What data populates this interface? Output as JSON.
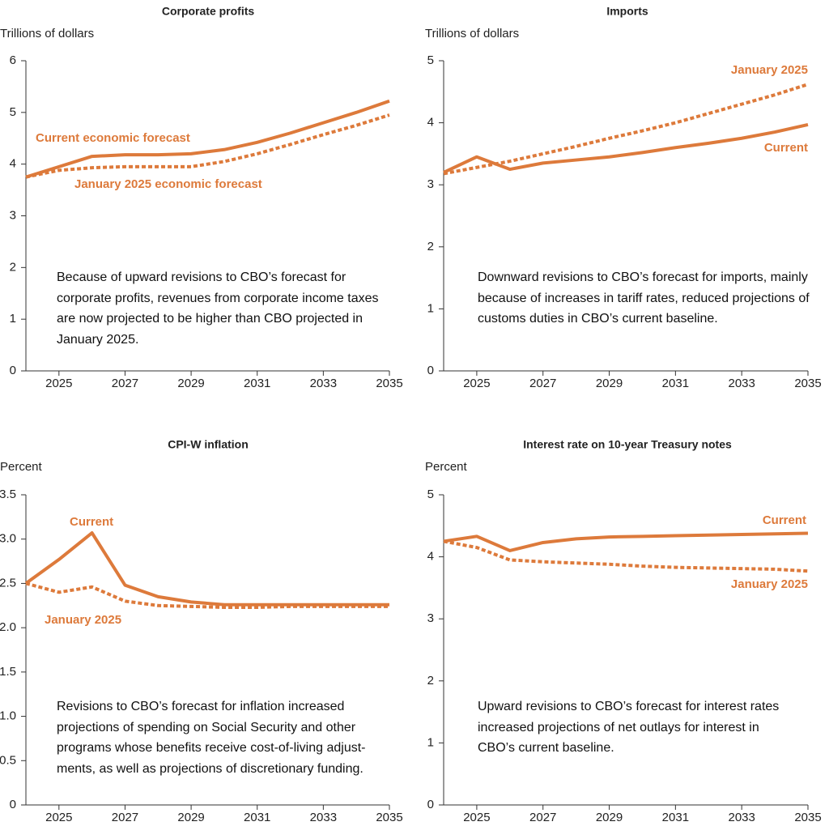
{
  "chart_data": [
    {
      "type": "line",
      "title": "Corporate profits",
      "y_label": "Trillions of dollars",
      "x": [
        2024,
        2025,
        2026,
        2027,
        2028,
        2029,
        2030,
        2031,
        2032,
        2033,
        2034,
        2035
      ],
      "series": [
        {
          "name": "Current economic forecast",
          "color": "#dd7a3b",
          "style": "solid",
          "values": [
            3.75,
            3.95,
            4.15,
            4.18,
            4.18,
            4.2,
            4.28,
            4.42,
            4.6,
            4.8,
            5.0,
            5.22
          ]
        },
        {
          "name": "January 2025 economic forecast",
          "color": "#dd7a3b",
          "style": "dotted",
          "values": [
            3.75,
            3.88,
            3.93,
            3.95,
            3.95,
            3.95,
            4.05,
            4.2,
            4.38,
            4.57,
            4.75,
            4.95
          ]
        }
      ],
      "xlim": [
        2024,
        2035
      ],
      "xticks": [
        2025,
        2027,
        2029,
        2031,
        2033,
        2035
      ],
      "ylim": [
        0,
        6
      ],
      "yticks": [
        0,
        1,
        2,
        3,
        4,
        5,
        6
      ],
      "annotation": "Because of upward revisions to CBO’s forecast for corporate profits, revenues from corporate income taxes are now projected to be higher than CBO projected in January 2025."
    },
    {
      "type": "line",
      "title": "Imports",
      "y_label": "Trillions of dollars",
      "x": [
        2024,
        2025,
        2026,
        2027,
        2028,
        2029,
        2030,
        2031,
        2032,
        2033,
        2034,
        2035
      ],
      "series": [
        {
          "name": "Current",
          "color": "#dd7a3b",
          "style": "solid",
          "values": [
            3.2,
            3.45,
            3.25,
            3.35,
            3.4,
            3.45,
            3.52,
            3.6,
            3.67,
            3.75,
            3.85,
            3.97
          ]
        },
        {
          "name": "January 2025",
          "color": "#dd7a3b",
          "style": "dotted",
          "values": [
            3.18,
            3.28,
            3.38,
            3.5,
            3.62,
            3.75,
            3.87,
            4.0,
            4.15,
            4.3,
            4.45,
            4.62
          ]
        }
      ],
      "xlim": [
        2024,
        2035
      ],
      "xticks": [
        2025,
        2027,
        2029,
        2031,
        2033,
        2035
      ],
      "ylim": [
        0,
        5
      ],
      "yticks": [
        0,
        1,
        2,
        3,
        4,
        5
      ],
      "annotation": "Downward revisions to CBO’s forecast for imports, mainly because of increases in tariff rates, reduced projections of customs duties in CBO’s current baseline."
    },
    {
      "type": "line",
      "title": "CPI-W inflation",
      "y_label": "Percent",
      "x": [
        2024,
        2025,
        2026,
        2027,
        2028,
        2029,
        2030,
        2031,
        2032,
        2033,
        2034,
        2035
      ],
      "series": [
        {
          "name": "Current",
          "color": "#dd7a3b",
          "style": "solid",
          "values": [
            2.5,
            2.77,
            3.07,
            2.48,
            2.35,
            2.29,
            2.26,
            2.26,
            2.26,
            2.26,
            2.26,
            2.26
          ]
        },
        {
          "name": "January 2025",
          "color": "#dd7a3b",
          "style": "dotted",
          "values": [
            2.5,
            2.4,
            2.46,
            2.3,
            2.25,
            2.24,
            2.23,
            2.23,
            2.24,
            2.24,
            2.24,
            2.24
          ]
        }
      ],
      "xlim": [
        2024,
        2035
      ],
      "xticks": [
        2025,
        2027,
        2029,
        2031,
        2033,
        2035
      ],
      "ylim": [
        0,
        3.5
      ],
      "yticks": [
        0,
        0.5,
        {
          "value": 1,
          "label": "1.0"
        },
        1.5,
        {
          "value": 2,
          "label": "2.0"
        },
        2.5,
        {
          "value": 3,
          "label": "3.0"
        },
        3.5
      ],
      "annotation": "Revisions to CBO’s forecast for inflation increased projections of spending on Social Security and other programs whose benefits receive cost-of-living adjust­ments, as well as projections of discretionary funding."
    },
    {
      "type": "line",
      "title": "Interest rate on 10-year Treasury notes",
      "y_label": "Percent",
      "x": [
        2024,
        2025,
        2026,
        2027,
        2028,
        2029,
        2030,
        2031,
        2032,
        2033,
        2034,
        2035
      ],
      "series": [
        {
          "name": "Current",
          "color": "#dd7a3b",
          "style": "solid",
          "values": [
            4.25,
            4.33,
            4.1,
            4.23,
            4.29,
            4.32,
            4.33,
            4.34,
            4.35,
            4.36,
            4.37,
            4.38
          ]
        },
        {
          "name": "January 2025",
          "color": "#dd7a3b",
          "style": "dotted",
          "values": [
            4.25,
            4.15,
            3.95,
            3.92,
            3.9,
            3.88,
            3.85,
            3.83,
            3.82,
            3.81,
            3.8,
            3.77
          ]
        }
      ],
      "xlim": [
        2024,
        2035
      ],
      "xticks": [
        2025,
        2027,
        2029,
        2031,
        2033,
        2035
      ],
      "ylim": [
        0,
        5
      ],
      "yticks": [
        0,
        1,
        2,
        3,
        4,
        5
      ],
      "annotation": "Upward revisions to CBO’s forecast for interest rates increased projections of net outlays for interest in CBO’s current baseline."
    }
  ]
}
